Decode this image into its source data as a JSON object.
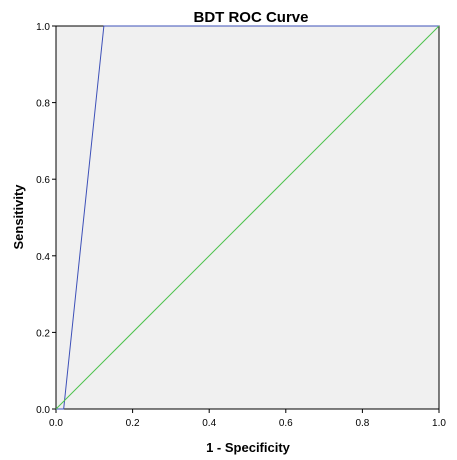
{
  "chart_data": {
    "type": "line",
    "title": "BDT ROC Curve",
    "xlabel": "1 - Specificity",
    "ylabel": "Sensitivity",
    "xlim": [
      0,
      1
    ],
    "ylim": [
      0,
      1
    ],
    "x_ticks": [
      "0.0",
      "0.2",
      "0.4",
      "0.6",
      "0.8",
      "1.0"
    ],
    "y_ticks": [
      "0.0",
      "0.2",
      "0.4",
      "0.6",
      "0.8",
      "1.0"
    ],
    "grid": false,
    "legend": "none",
    "series": [
      {
        "color": "#3d50b8",
        "x": [
          0.0,
          0.02,
          0.125,
          1.0
        ],
        "y": [
          0.0,
          0.0,
          1.0,
          1.0
        ]
      },
      {
        "color": "#4cc24c",
        "x": [
          0.0,
          1.0
        ],
        "y": [
          0.0,
          1.0
        ]
      }
    ],
    "plot_background": "#f0f0f0"
  }
}
